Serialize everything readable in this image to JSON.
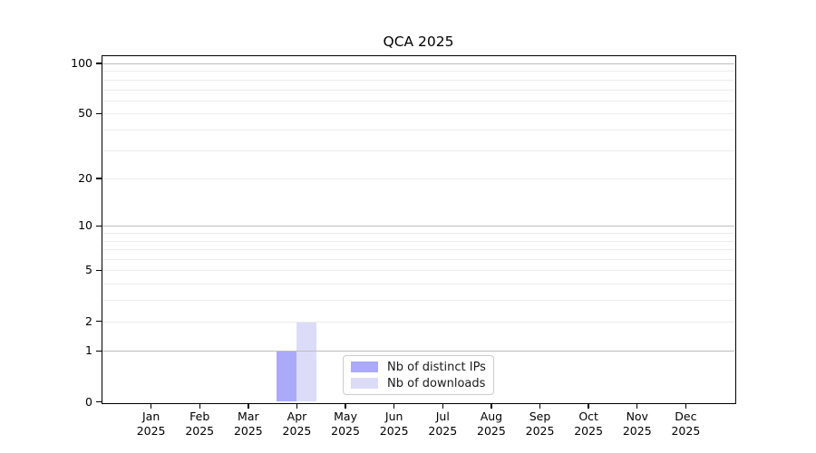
{
  "chart_data": {
    "type": "bar",
    "title": "QCA 2025",
    "categories": [
      {
        "month": "Jan",
        "year": "2025"
      },
      {
        "month": "Feb",
        "year": "2025"
      },
      {
        "month": "Mar",
        "year": "2025"
      },
      {
        "month": "Apr",
        "year": "2025"
      },
      {
        "month": "May",
        "year": "2025"
      },
      {
        "month": "Jun",
        "year": "2025"
      },
      {
        "month": "Jul",
        "year": "2025"
      },
      {
        "month": "Aug",
        "year": "2025"
      },
      {
        "month": "Sep",
        "year": "2025"
      },
      {
        "month": "Oct",
        "year": "2025"
      },
      {
        "month": "Nov",
        "year": "2025"
      },
      {
        "month": "Dec",
        "year": "2025"
      }
    ],
    "series": [
      {
        "name": "Nb of distinct IPs",
        "color": "#aaaaf8",
        "values": [
          0,
          0,
          0,
          1,
          0,
          0,
          0,
          0,
          0,
          0,
          0,
          0
        ]
      },
      {
        "name": "Nb of downloads",
        "color": "#dcdcf8",
        "values": [
          0,
          0,
          0,
          2,
          0,
          0,
          0,
          0,
          0,
          0,
          0,
          0
        ]
      }
    ],
    "xlabel": "",
    "ylabel": "",
    "y_axis": {
      "scale": "log1p",
      "ticks": [
        0,
        1,
        2,
        5,
        10,
        20,
        50,
        100
      ],
      "major_gridlines": [
        1,
        10,
        100
      ],
      "minor_gridlines": [
        2,
        3,
        4,
        5,
        6,
        7,
        8,
        9,
        20,
        30,
        40,
        50,
        60,
        70,
        80,
        90
      ],
      "ylim": [
        0,
        110
      ]
    },
    "legend": {
      "position": "lower center",
      "items": [
        "Nb of distinct IPs",
        "Nb of downloads"
      ]
    },
    "colors": {
      "major_gridline": "#bdbdbd",
      "minor_gridline": "#ececec",
      "spine": "#000000",
      "text": "#000000",
      "background": "#ffffff"
    },
    "grid": true
  }
}
